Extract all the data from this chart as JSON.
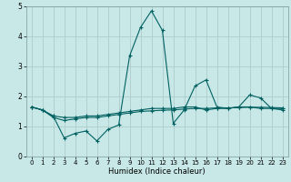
{
  "bg_color": "#c8e8e8",
  "grid_color": "#b0cccc",
  "line_color": "#006060",
  "line_width": 0.8,
  "marker": "+",
  "marker_size": 3,
  "marker_edge_width": 0.8,
  "xlabel": "Humidex (Indice chaleur)",
  "xlabel_fontsize": 6.0,
  "tick_fontsize": 5.0,
  "xlim": [
    -0.5,
    23.5
  ],
  "ylim": [
    0,
    5
  ],
  "xtick_labels": [
    "0",
    "1",
    "2",
    "3",
    "4",
    "5",
    "6",
    "7",
    "8",
    "9",
    "10",
    "11",
    "12",
    "13",
    "14",
    "15",
    "16",
    "17",
    "18",
    "19",
    "20",
    "21",
    "22",
    "23"
  ],
  "yticks": [
    0,
    1,
    2,
    3,
    4,
    5
  ],
  "series": [
    [
      1.65,
      1.55,
      1.35,
      0.62,
      0.77,
      0.85,
      0.52,
      0.9,
      1.05,
      3.35,
      4.3,
      4.85,
      4.2,
      1.1,
      1.55,
      2.35,
      2.55,
      1.65,
      1.6,
      1.65,
      2.05,
      1.95,
      1.6,
      1.55
    ],
    [
      1.65,
      1.55,
      1.35,
      1.3,
      1.3,
      1.35,
      1.35,
      1.4,
      1.45,
      1.5,
      1.55,
      1.6,
      1.6,
      1.6,
      1.65,
      1.65,
      1.55,
      1.6,
      1.6,
      1.65,
      1.65,
      1.6,
      1.6,
      1.6
    ],
    [
      1.65,
      1.55,
      1.3,
      1.2,
      1.25,
      1.3,
      1.3,
      1.35,
      1.4,
      1.45,
      1.5,
      1.52,
      1.54,
      1.55,
      1.58,
      1.6,
      1.6,
      1.62,
      1.62,
      1.63,
      1.64,
      1.64,
      1.63,
      1.62
    ]
  ]
}
